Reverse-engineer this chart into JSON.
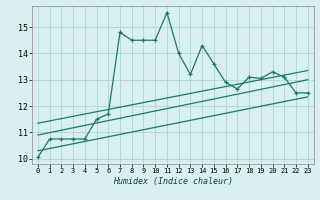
{
  "title": "",
  "xlabel": "Humidex (Indice chaleur)",
  "ylabel": "",
  "xlim": [
    -0.5,
    23.5
  ],
  "ylim": [
    9.8,
    15.8
  ],
  "yticks": [
    10,
    11,
    12,
    13,
    14,
    15
  ],
  "xticks": [
    0,
    1,
    2,
    3,
    4,
    5,
    6,
    7,
    8,
    9,
    10,
    11,
    12,
    13,
    14,
    15,
    16,
    17,
    18,
    19,
    20,
    21,
    22,
    23
  ],
  "bg_color": "#d8f0f0",
  "grid_color": "#b8d8d8",
  "line_color": "#1a7a6a",
  "main_line_x": [
    0,
    1,
    2,
    3,
    4,
    5,
    6,
    7,
    8,
    9,
    10,
    11,
    12,
    13,
    14,
    15,
    16,
    17,
    18,
    19,
    20,
    21,
    22,
    23
  ],
  "main_line_y": [
    10.05,
    10.75,
    10.75,
    10.75,
    10.75,
    11.5,
    11.7,
    14.8,
    14.5,
    14.5,
    14.5,
    15.55,
    14.0,
    13.2,
    14.3,
    13.6,
    12.9,
    12.65,
    13.1,
    13.05,
    13.3,
    13.1,
    12.5,
    12.5
  ],
  "trend1_x": [
    0,
    23
  ],
  "trend1_y": [
    10.3,
    12.35
  ],
  "trend2_x": [
    0,
    23
  ],
  "trend2_y": [
    10.9,
    13.0
  ],
  "trend3_x": [
    0,
    23
  ],
  "trend3_y": [
    11.35,
    13.35
  ]
}
